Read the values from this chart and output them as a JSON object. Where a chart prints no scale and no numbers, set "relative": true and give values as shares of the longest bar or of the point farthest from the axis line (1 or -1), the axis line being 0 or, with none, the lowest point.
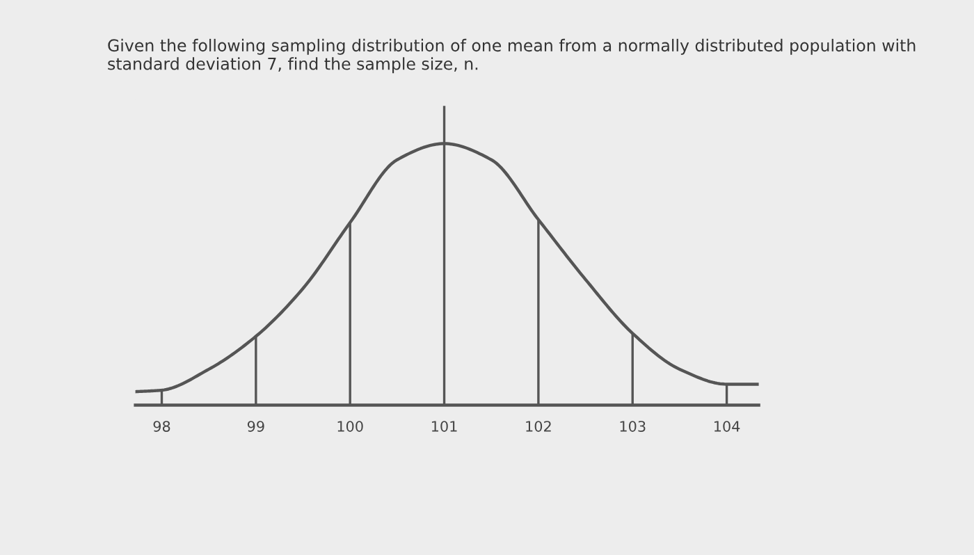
{
  "chart_data": {
    "type": "line",
    "title": "Given the following sampling distribution of one mean from a normally distributed population with standard deviation 7, find the sample size, n.",
    "relative": true,
    "xlim": [
      97.72,
      104.34
    ],
    "xticks": [
      98,
      99,
      100,
      101,
      102,
      103,
      104
    ],
    "grid": false,
    "marker": "none",
    "line_style": "solid",
    "series": [
      {
        "color": "#555555",
        "x": [
          97.72,
          98,
          98.5,
          99,
          99.5,
          100,
          100.5,
          101,
          101.5,
          102,
          102.5,
          103,
          103.5,
          104,
          104.34
        ],
        "values": [
          0.045,
          0.05,
          0.12,
          0.23,
          0.39,
          0.61,
          0.82,
          0.874,
          0.82,
          0.62,
          0.42,
          0.24,
          0.12,
          0.07,
          0.07
        ]
      },
      {
        "type": "bar",
        "color": "#555555",
        "x": [
          98,
          99,
          100,
          101,
          102,
          103,
          104
        ],
        "values": [
          0.05,
          0.23,
          0.61,
          1,
          0.62,
          0.24,
          0.07
        ]
      }
    ]
  }
}
